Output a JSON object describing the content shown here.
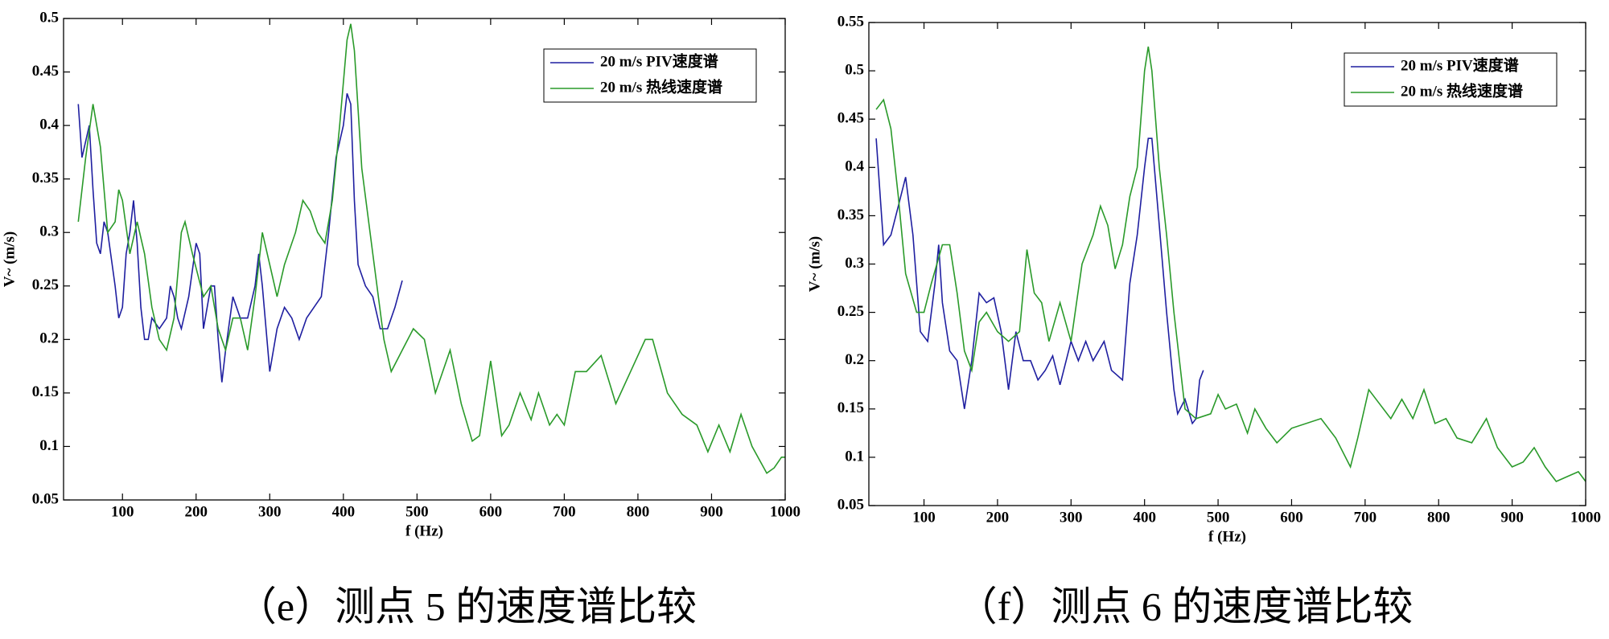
{
  "chart_data": [
    {
      "type": "line",
      "caption": "（e）测点 5 的速度谱比较",
      "xlabel": "f (Hz)",
      "ylabel": "V~ (m/s)",
      "xlim": [
        20,
        1000
      ],
      "ylim": [
        0.05,
        0.5
      ],
      "xticks": [
        100,
        200,
        300,
        400,
        500,
        600,
        700,
        800,
        900,
        1000
      ],
      "yticks": [
        0.05,
        0.1,
        0.15,
        0.2,
        0.25,
        0.3,
        0.35,
        0.4,
        0.45,
        0.5
      ],
      "legend": "upper right",
      "series": [
        {
          "name": "20 m/s PIV速度谱",
          "color": "#1f1fa0",
          "x": [
            40,
            45,
            55,
            60,
            65,
            70,
            75,
            80,
            90,
            95,
            100,
            105,
            110,
            115,
            120,
            125,
            130,
            135,
            140,
            150,
            160,
            165,
            170,
            175,
            180,
            190,
            200,
            205,
            210,
            220,
            225,
            230,
            235,
            240,
            250,
            260,
            270,
            280,
            285,
            290,
            300,
            310,
            320,
            330,
            340,
            350,
            360,
            370,
            380,
            390,
            400,
            405,
            410,
            415,
            420,
            430,
            440,
            450,
            460,
            470,
            480
          ],
          "values": [
            0.42,
            0.37,
            0.4,
            0.34,
            0.29,
            0.28,
            0.31,
            0.3,
            0.25,
            0.22,
            0.23,
            0.28,
            0.3,
            0.33,
            0.29,
            0.23,
            0.2,
            0.2,
            0.22,
            0.21,
            0.22,
            0.25,
            0.24,
            0.22,
            0.21,
            0.24,
            0.29,
            0.28,
            0.21,
            0.25,
            0.25,
            0.2,
            0.16,
            0.19,
            0.24,
            0.22,
            0.22,
            0.25,
            0.28,
            0.25,
            0.17,
            0.21,
            0.23,
            0.22,
            0.2,
            0.22,
            0.23,
            0.24,
            0.3,
            0.37,
            0.4,
            0.43,
            0.42,
            0.33,
            0.27,
            0.25,
            0.24,
            0.21,
            0.21,
            0.23,
            0.255
          ]
        },
        {
          "name": "20 m/s 热线速度谱",
          "color": "#2a9a2a",
          "x": [
            40,
            50,
            60,
            70,
            80,
            90,
            95,
            100,
            110,
            120,
            130,
            140,
            150,
            160,
            170,
            180,
            185,
            195,
            210,
            220,
            230,
            240,
            250,
            260,
            270,
            280,
            290,
            300,
            310,
            320,
            335,
            345,
            355,
            365,
            375,
            385,
            395,
            405,
            410,
            415,
            425,
            440,
            455,
            465,
            480,
            495,
            510,
            525,
            545,
            560,
            575,
            585,
            600,
            615,
            625,
            640,
            655,
            665,
            680,
            690,
            700,
            715,
            730,
            750,
            770,
            790,
            810,
            820,
            840,
            860,
            880,
            895,
            910,
            925,
            940,
            955,
            975,
            985,
            995,
            1000
          ],
          "values": [
            0.31,
            0.37,
            0.42,
            0.38,
            0.3,
            0.31,
            0.34,
            0.33,
            0.28,
            0.31,
            0.28,
            0.23,
            0.2,
            0.19,
            0.22,
            0.3,
            0.31,
            0.28,
            0.24,
            0.25,
            0.21,
            0.19,
            0.22,
            0.22,
            0.19,
            0.24,
            0.3,
            0.27,
            0.24,
            0.27,
            0.3,
            0.33,
            0.32,
            0.3,
            0.29,
            0.33,
            0.4,
            0.48,
            0.495,
            0.47,
            0.36,
            0.28,
            0.2,
            0.17,
            0.19,
            0.21,
            0.2,
            0.15,
            0.19,
            0.14,
            0.105,
            0.11,
            0.18,
            0.11,
            0.12,
            0.15,
            0.125,
            0.15,
            0.12,
            0.13,
            0.12,
            0.17,
            0.17,
            0.185,
            0.14,
            0.17,
            0.2,
            0.2,
            0.15,
            0.13,
            0.12,
            0.095,
            0.12,
            0.095,
            0.13,
            0.1,
            0.075,
            0.08,
            0.09,
            0.09
          ]
        }
      ]
    },
    {
      "type": "line",
      "caption": "（f）测点 6 的速度谱比较",
      "xlabel": "f (Hz)",
      "ylabel": "V~ (m/s)",
      "xlim": [
        25,
        1000
      ],
      "ylim": [
        0.05,
        0.55
      ],
      "xticks": [
        100,
        200,
        300,
        400,
        500,
        600,
        700,
        800,
        900,
        1000
      ],
      "yticks": [
        0.05,
        0.1,
        0.15,
        0.2,
        0.25,
        0.3,
        0.35,
        0.4,
        0.45,
        0.5,
        0.55
      ],
      "legend": "upper right",
      "series": [
        {
          "name": "20 m/s PIV速度谱",
          "color": "#1f1fa0",
          "x": [
            35,
            45,
            55,
            65,
            75,
            85,
            95,
            105,
            115,
            120,
            125,
            135,
            145,
            155,
            165,
            175,
            185,
            195,
            205,
            215,
            225,
            235,
            245,
            255,
            265,
            275,
            285,
            300,
            310,
            320,
            330,
            345,
            355,
            370,
            380,
            390,
            400,
            405,
            410,
            420,
            430,
            440,
            445,
            455,
            465,
            470,
            475,
            480
          ],
          "values": [
            0.43,
            0.32,
            0.33,
            0.36,
            0.39,
            0.33,
            0.23,
            0.22,
            0.28,
            0.32,
            0.26,
            0.21,
            0.2,
            0.15,
            0.2,
            0.27,
            0.26,
            0.265,
            0.23,
            0.17,
            0.23,
            0.2,
            0.2,
            0.18,
            0.19,
            0.205,
            0.175,
            0.22,
            0.2,
            0.22,
            0.2,
            0.22,
            0.19,
            0.18,
            0.28,
            0.33,
            0.4,
            0.43,
            0.43,
            0.34,
            0.25,
            0.17,
            0.145,
            0.16,
            0.135,
            0.14,
            0.18,
            0.19
          ]
        },
        {
          "name": "20 m/s 热线速度谱",
          "color": "#2a9a2a",
          "x": [
            35,
            45,
            55,
            65,
            75,
            90,
            100,
            110,
            125,
            135,
            145,
            155,
            165,
            175,
            185,
            200,
            215,
            230,
            240,
            250,
            260,
            270,
            285,
            300,
            315,
            330,
            340,
            350,
            360,
            370,
            380,
            390,
            400,
            405,
            410,
            420,
            430,
            440,
            455,
            470,
            490,
            500,
            510,
            525,
            540,
            550,
            565,
            580,
            600,
            640,
            660,
            680,
            690,
            705,
            720,
            735,
            750,
            765,
            780,
            795,
            810,
            825,
            845,
            865,
            880,
            900,
            915,
            930,
            945,
            960,
            975,
            990,
            1000
          ],
          "values": [
            0.46,
            0.47,
            0.44,
            0.37,
            0.29,
            0.25,
            0.25,
            0.28,
            0.32,
            0.32,
            0.27,
            0.21,
            0.19,
            0.24,
            0.25,
            0.23,
            0.22,
            0.23,
            0.315,
            0.27,
            0.26,
            0.22,
            0.26,
            0.22,
            0.3,
            0.33,
            0.36,
            0.34,
            0.295,
            0.32,
            0.37,
            0.4,
            0.5,
            0.525,
            0.5,
            0.4,
            0.33,
            0.25,
            0.15,
            0.14,
            0.145,
            0.165,
            0.15,
            0.155,
            0.125,
            0.15,
            0.13,
            0.115,
            0.13,
            0.14,
            0.12,
            0.09,
            0.12,
            0.17,
            0.155,
            0.14,
            0.16,
            0.14,
            0.17,
            0.135,
            0.14,
            0.12,
            0.115,
            0.14,
            0.11,
            0.09,
            0.095,
            0.11,
            0.09,
            0.075,
            0.08,
            0.085,
            0.075
          ]
        }
      ]
    }
  ]
}
